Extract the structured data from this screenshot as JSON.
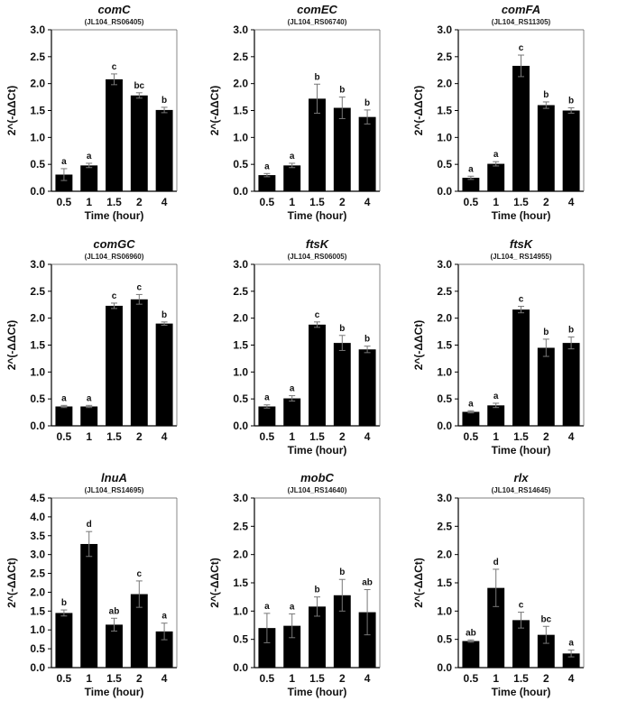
{
  "chart_data": [
    {
      "type": "bar",
      "title": "comC",
      "subtitle": "(JL104_RS06405)",
      "xlabel": "Time (hour)",
      "ylabel": "2^(-ΔΔCt)",
      "categories": [
        "0.5",
        "1",
        "1.5",
        "2",
        "4"
      ],
      "values": [
        0.31,
        0.48,
        2.08,
        1.78,
        1.51
      ],
      "errors": [
        0.11,
        0.04,
        0.1,
        0.05,
        0.05
      ],
      "letters": [
        "a",
        "a",
        "c",
        "bc",
        "b"
      ],
      "yticks": [
        "0.0",
        "0.5",
        "1.0",
        "1.5",
        "2.0",
        "2.5",
        "3.0"
      ],
      "ylim": [
        0,
        3.0
      ]
    },
    {
      "type": "bar",
      "title": "comEC",
      "subtitle": "(JL104_RS06740)",
      "xlabel": "Time (hour)",
      "ylabel": "2^(-ΔΔCt)",
      "categories": [
        "0.5",
        "1",
        "1.5",
        "2",
        "4"
      ],
      "values": [
        0.3,
        0.48,
        1.72,
        1.55,
        1.38
      ],
      "errors": [
        0.03,
        0.04,
        0.27,
        0.2,
        0.13
      ],
      "letters": [
        "a",
        "a",
        "b",
        "b",
        "b"
      ],
      "yticks": [
        "0.0",
        "0.5",
        "1.0",
        "1.5",
        "2.0",
        "2.5",
        "3.0"
      ],
      "ylim": [
        0,
        3.0
      ]
    },
    {
      "type": "bar",
      "title": "comFA",
      "subtitle": "(JL104_RS11305)",
      "xlabel": "Time (hour)",
      "ylabel": "2^(-ΔΔCt)",
      "categories": [
        "0.5",
        "1",
        "1.5",
        "2",
        "4"
      ],
      "values": [
        0.25,
        0.51,
        2.33,
        1.6,
        1.5
      ],
      "errors": [
        0.03,
        0.04,
        0.2,
        0.06,
        0.05
      ],
      "letters": [
        "a",
        "a",
        "c",
        "b",
        "b"
      ],
      "yticks": [
        "0.0",
        "0.5",
        "1.0",
        "1.5",
        "2.0",
        "2.5",
        "3.0"
      ],
      "ylim": [
        0,
        3.0
      ]
    },
    {
      "type": "bar",
      "title": "comGC",
      "subtitle": "(JL104_RS06960)",
      "xlabel": "",
      "ylabel": "2^(-ΔΔCt)",
      "categories": [
        "0.5",
        "1",
        "1.5",
        "2",
        "4"
      ],
      "values": [
        0.36,
        0.36,
        2.23,
        2.35,
        1.9
      ],
      "errors": [
        0.02,
        0.02,
        0.05,
        0.09,
        0.03
      ],
      "letters": [
        "a",
        "a",
        "c",
        "c",
        "b"
      ],
      "yticks": [
        "0.0",
        "0.5",
        "1.0",
        "1.5",
        "2.0",
        "2.5",
        "3.0"
      ],
      "ylim": [
        0,
        3.0
      ]
    },
    {
      "type": "bar",
      "title": "ftsK",
      "subtitle": "(JL104_RS06005)",
      "xlabel": "Time (hour)",
      "ylabel": "",
      "categories": [
        "0.5",
        "1",
        "1.5",
        "2",
        "4"
      ],
      "values": [
        0.36,
        0.51,
        1.88,
        1.54,
        1.42
      ],
      "errors": [
        0.03,
        0.05,
        0.05,
        0.14,
        0.06
      ],
      "letters": [
        "a",
        "a",
        "c",
        "b",
        "b"
      ],
      "yticks": [
        "0.0",
        "0.5",
        "1.0",
        "1.5",
        "2.0",
        "2.5",
        "3.0"
      ],
      "ylim": [
        0,
        3.0
      ]
    },
    {
      "type": "bar",
      "title": "ftsK",
      "subtitle": "(JL104_ RS14955)",
      "xlabel": "Time (hour)",
      "ylabel": "2^(-ΔΔCt)",
      "categories": [
        "0.5",
        "1",
        "1.5",
        "2",
        "4"
      ],
      "values": [
        0.26,
        0.38,
        2.16,
        1.45,
        1.54
      ],
      "errors": [
        0.02,
        0.04,
        0.06,
        0.16,
        0.11
      ],
      "letters": [
        "a",
        "a",
        "c",
        "b",
        "b"
      ],
      "yticks": [
        "0.0",
        "0.5",
        "1.0",
        "1.5",
        "2.0",
        "2.5",
        "3.0"
      ],
      "ylim": [
        0,
        3.0
      ]
    },
    {
      "type": "bar",
      "title": "lnuA",
      "subtitle": "(JL104_RS14695)",
      "xlabel": "Time (hour)",
      "ylabel": "2^(-ΔΔCt)",
      "categories": [
        "0.5",
        "1",
        "1.5",
        "2",
        "4"
      ],
      "values": [
        1.45,
        3.28,
        1.14,
        1.95,
        0.96
      ],
      "errors": [
        0.08,
        0.33,
        0.17,
        0.35,
        0.22
      ],
      "letters": [
        "b",
        "d",
        "ab",
        "c",
        "a"
      ],
      "yticks": [
        "0.0",
        "0.5",
        "1.0",
        "1.5",
        "2.0",
        "2.5",
        "3.0",
        "3.5",
        "4.0",
        "4.5"
      ],
      "ylim": [
        0,
        4.5
      ]
    },
    {
      "type": "bar",
      "title": "mobC",
      "subtitle": "(JL104_RS14640)",
      "xlabel": "Time (hour)",
      "ylabel": "2^(-ΔΔCt)",
      "categories": [
        "0.5",
        "1",
        "1.5",
        "2",
        "4"
      ],
      "values": [
        0.7,
        0.74,
        1.08,
        1.28,
        0.98
      ],
      "errors": [
        0.26,
        0.21,
        0.17,
        0.28,
        0.4
      ],
      "letters": [
        "a",
        "a",
        "b",
        "b",
        "ab"
      ],
      "yticks": [
        "0.0",
        "0.5",
        "1.0",
        "1.5",
        "2.0",
        "2.5",
        "3.0"
      ],
      "ylim": [
        0,
        3.0
      ]
    },
    {
      "type": "bar",
      "title": "rlx",
      "subtitle": "(JL104_RS14645)",
      "xlabel": "Time (hour)",
      "ylabel": "2^(-ΔΔCt)",
      "categories": [
        "0.5",
        "1",
        "1.5",
        "2",
        "4"
      ],
      "values": [
        0.47,
        1.41,
        0.84,
        0.58,
        0.25
      ],
      "errors": [
        0.02,
        0.33,
        0.14,
        0.15,
        0.06
      ],
      "letters": [
        "ab",
        "d",
        "c",
        "bc",
        "a"
      ],
      "yticks": [
        "0.0",
        "0.5",
        "1.0",
        "1.5",
        "2.0",
        "2.5",
        "3.0"
      ],
      "ylim": [
        0,
        3.0
      ]
    }
  ]
}
